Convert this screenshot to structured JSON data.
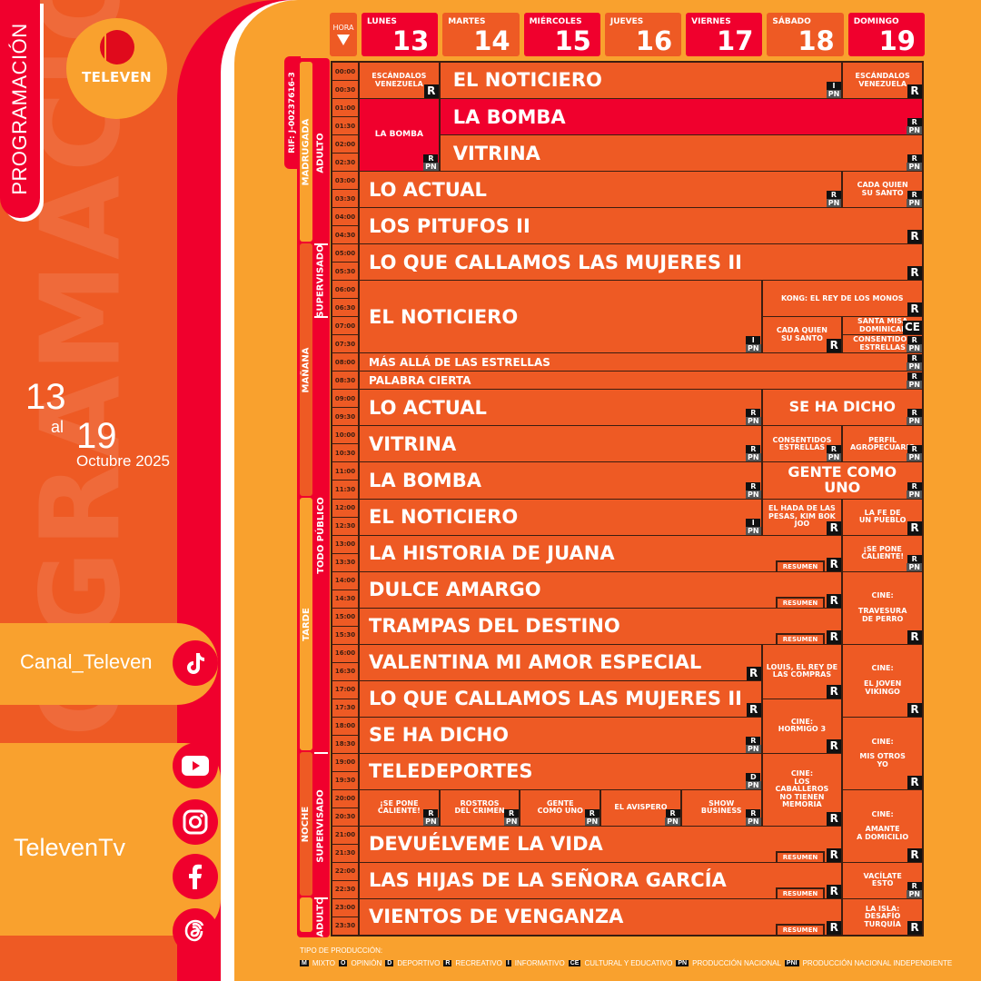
{
  "brand": {
    "title": "PROGRAMACIÓN",
    "logo_text": "TELEVEN",
    "rif": "RIF: J-00237616-3",
    "colors": {
      "orange": "#ee5a24",
      "red": "#f0002d",
      "yellow": "#f9a12e"
    }
  },
  "dates": {
    "from": "13",
    "al": "al",
    "to": "19",
    "month_year": "Octubre 2025"
  },
  "social": {
    "tiktok": "Canal_Televen",
    "others": "TelevenTv",
    "icons": [
      "tiktok-icon",
      "youtube-icon",
      "instagram-icon",
      "facebook-icon",
      "threads-icon"
    ]
  },
  "header": {
    "hora": "HORA",
    "days": [
      {
        "name": "LUNES",
        "num": "13",
        "color": "#f0002d"
      },
      {
        "name": "MARTES",
        "num": "14",
        "color": "#ee5a24"
      },
      {
        "name": "MIÉRCOLES",
        "num": "15",
        "color": "#f0002d"
      },
      {
        "name": "JUEVES",
        "num": "16",
        "color": "#ee5a24"
      },
      {
        "name": "VIERNES",
        "num": "17",
        "color": "#f0002d"
      },
      {
        "name": "SÁBADO",
        "num": "18",
        "color": "#ee5a24"
      },
      {
        "name": "DOMINGO",
        "num": "19",
        "color": "#f0002d"
      }
    ]
  },
  "times": [
    "00:00",
    "00:30",
    "01:00",
    "01:30",
    "02:00",
    "02:30",
    "03:00",
    "03:30",
    "04:00",
    "04:30",
    "05:00",
    "05:30",
    "06:00",
    "06:30",
    "07:00",
    "07:30",
    "08:00",
    "08:30",
    "09:00",
    "09:30",
    "10:00",
    "10:30",
    "11:00",
    "11:30",
    "12:00",
    "12:30",
    "13:00",
    "13:30",
    "14:00",
    "14:30",
    "15:00",
    "15:30",
    "16:00",
    "16:30",
    "17:00",
    "17:30",
    "18:00",
    "18:30",
    "19:00",
    "19:30",
    "20:00",
    "20:30",
    "21:00",
    "21:30",
    "22:00",
    "22:30",
    "23:00",
    "23:30"
  ],
  "dayparts": [
    {
      "label": "MADRUGADA",
      "start": "00:00",
      "end": "05:00",
      "color": "#f9a12e"
    },
    {
      "label": "MAÑANA",
      "start": "05:00",
      "end": "12:00",
      "color": "#ee5a24"
    },
    {
      "label": "TARDE",
      "start": "12:00",
      "end": "19:00",
      "color": "#f9a12e"
    },
    {
      "label": "NOCHE",
      "start": "19:00",
      "end": "23:00",
      "color": "#ee5a24"
    },
    {
      "label": "",
      "start": "23:00",
      "end": "24:00",
      "color": "#f9a12e"
    }
  ],
  "ratings": [
    {
      "label": "ADULTO",
      "start": "00:00",
      "end": "05:00"
    },
    {
      "label": "SUPERVISADO",
      "start": "05:00",
      "end": "07:00"
    },
    {
      "label": "TODO PÚBLICO",
      "start": "07:00",
      "end": "19:00"
    },
    {
      "label": "SUPERVISADO",
      "start": "19:00",
      "end": "23:00"
    },
    {
      "label": "ADULTO",
      "start": "23:00",
      "end": "24:00"
    }
  ],
  "resumen_label": "RESUMEN",
  "programs": [
    {
      "title": "ESCÁNDALOS\nVENEZUELA",
      "days": [
        0,
        0
      ],
      "start": "00:00",
      "end": "01:00",
      "badges": [
        "R"
      ]
    },
    {
      "title": "EL NOTICIERO",
      "days": [
        1,
        5
      ],
      "start": "00:00",
      "end": "01:00",
      "badges": [
        "I",
        "PN"
      ]
    },
    {
      "title": "ESCÁNDALOS\nVENEZUELA",
      "days": [
        6,
        6
      ],
      "start": "00:00",
      "end": "01:00",
      "badges": [
        "R"
      ]
    },
    {
      "title": "LA BOMBA",
      "days": [
        0,
        0
      ],
      "start": "01:00",
      "end": "03:00",
      "badges": [
        "R",
        "PN"
      ],
      "highlight": true
    },
    {
      "title": "LA BOMBA",
      "days": [
        1,
        6
      ],
      "start": "01:00",
      "end": "02:00",
      "badges": [
        "R",
        "PN"
      ],
      "highlight": true
    },
    {
      "title": "VITRINA",
      "days": [
        1,
        6
      ],
      "start": "02:00",
      "end": "03:00",
      "badges": [
        "R",
        "PN"
      ]
    },
    {
      "title": "LO ACTUAL",
      "days": [
        0,
        5
      ],
      "start": "03:00",
      "end": "04:00",
      "badges": [
        "R",
        "PN"
      ]
    },
    {
      "title": "CADA QUIEN\nSU SANTO",
      "days": [
        6,
        6
      ],
      "start": "03:00",
      "end": "04:00",
      "badges": [
        "R",
        "PN"
      ]
    },
    {
      "title": "LOS PITUFOS II",
      "days": [
        0,
        6
      ],
      "start": "04:00",
      "end": "05:00",
      "badges": [
        "R"
      ]
    },
    {
      "title": "LO QUE CALLAMOS LAS MUJERES II",
      "days": [
        0,
        6
      ],
      "start": "05:00",
      "end": "06:00",
      "badges": [
        "R"
      ]
    },
    {
      "title": "EL NOTICIERO",
      "days": [
        0,
        4
      ],
      "start": "06:00",
      "end": "08:00",
      "badges": [
        "I",
        "PN"
      ]
    },
    {
      "title": "KONG: EL REY DE LOS MONOS",
      "days": [
        5,
        6
      ],
      "start": "06:00",
      "end": "07:00",
      "badges": [
        "R"
      ]
    },
    {
      "title": "CADA QUIEN\nSU SANTO",
      "days": [
        5,
        5
      ],
      "start": "07:00",
      "end": "08:00",
      "badges": [
        "R"
      ]
    },
    {
      "title": "SANTA MISA\nDOMINICAL",
      "days": [
        6,
        6
      ],
      "start": "07:00",
      "end": "07:30",
      "badges": [
        "CE"
      ]
    },
    {
      "title": "CONSENTIDOS\nESTRELLAS",
      "days": [
        6,
        6
      ],
      "start": "07:30",
      "end": "08:00",
      "badges": [
        "R",
        "PN"
      ]
    },
    {
      "title": "MÁS ALLÁ DE LAS ESTRELLAS",
      "days": [
        0,
        6
      ],
      "start": "08:00",
      "end": "08:30",
      "badges": [
        "R",
        "PN"
      ]
    },
    {
      "title": "PALABRA CIERTA",
      "days": [
        0,
        6
      ],
      "start": "08:30",
      "end": "09:00",
      "badges": [
        "R",
        "PN"
      ]
    },
    {
      "title": "LO ACTUAL",
      "days": [
        0,
        4
      ],
      "start": "09:00",
      "end": "10:00",
      "badges": [
        "R",
        "PN"
      ]
    },
    {
      "title": "SE HA DICHO",
      "days": [
        5,
        6
      ],
      "start": "09:00",
      "end": "10:00",
      "badges": [
        "R",
        "PN"
      ]
    },
    {
      "title": "VITRINA",
      "days": [
        0,
        4
      ],
      "start": "10:00",
      "end": "11:00",
      "badges": [
        "R",
        "PN"
      ]
    },
    {
      "title": "CONSENTIDOS\nESTRELLAS",
      "days": [
        5,
        5
      ],
      "start": "10:00",
      "end": "11:00",
      "badges": [
        "R",
        "PN"
      ]
    },
    {
      "title": "PERFIL\nAGROPECUARIO",
      "days": [
        6,
        6
      ],
      "start": "10:00",
      "end": "11:00",
      "badges": [
        "R",
        "PN"
      ]
    },
    {
      "title": "LA BOMBA",
      "days": [
        0,
        4
      ],
      "start": "11:00",
      "end": "12:00",
      "badges": [
        "R",
        "PN"
      ]
    },
    {
      "title": "GENTE COMO UNO",
      "days": [
        5,
        6
      ],
      "start": "11:00",
      "end": "12:00",
      "badges": [
        "R",
        "PN"
      ]
    },
    {
      "title": "EL NOTICIERO",
      "days": [
        0,
        4
      ],
      "start": "12:00",
      "end": "13:00",
      "badges": [
        "I",
        "PN"
      ]
    },
    {
      "title": "EL HADA DE LAS\nPESAS, KIM BOK\nJOO",
      "days": [
        5,
        5
      ],
      "start": "12:00",
      "end": "13:00",
      "badges": [
        "R"
      ]
    },
    {
      "title": "LA FE DE\nUN PUEBLO",
      "days": [
        6,
        6
      ],
      "start": "12:00",
      "end": "13:00",
      "badges": [
        "R"
      ]
    },
    {
      "title": "LA HISTORIA DE JUANA",
      "days": [
        0,
        5
      ],
      "start": "13:00",
      "end": "14:00",
      "badges": [
        "R"
      ],
      "resumen": true
    },
    {
      "title": "¡SE PONE\nCALIENTE!",
      "days": [
        6,
        6
      ],
      "start": "13:00",
      "end": "14:00",
      "badges": [
        "R",
        "PN"
      ]
    },
    {
      "title": "DULCE AMARGO",
      "days": [
        0,
        5
      ],
      "start": "14:00",
      "end": "15:00",
      "badges": [
        "R"
      ],
      "resumen": true
    },
    {
      "title": "TRAMPAS DEL DESTINO",
      "days": [
        0,
        5
      ],
      "start": "15:00",
      "end": "16:00",
      "badges": [
        "R"
      ],
      "resumen": true
    },
    {
      "title": "CINE:\n\nTRAVESURA\nDE PERRO",
      "days": [
        6,
        6
      ],
      "start": "14:00",
      "end": "16:00",
      "badges": [
        "R"
      ]
    },
    {
      "title": "VALENTINA MI AMOR ESPECIAL",
      "days": [
        0,
        4
      ],
      "start": "16:00",
      "end": "17:00",
      "badges": [
        "R"
      ]
    },
    {
      "title": "LOUIS, EL REY DE\nLAS COMPRAS",
      "days": [
        5,
        5
      ],
      "start": "16:00",
      "end": "17:30",
      "badges": [
        "R"
      ]
    },
    {
      "title": "CINE:\n\nEL JOVEN\nVIKINGO",
      "days": [
        6,
        6
      ],
      "start": "16:00",
      "end": "18:00",
      "badges": [
        "R"
      ]
    },
    {
      "title": "LO QUE CALLAMOS LAS MUJERES II",
      "days": [
        0,
        4
      ],
      "start": "17:00",
      "end": "18:00",
      "badges": [
        "R"
      ]
    },
    {
      "title": "CINE:\nHORMIGO 3",
      "days": [
        5,
        5
      ],
      "start": "17:30",
      "end": "19:00",
      "badges": [
        "R"
      ]
    },
    {
      "title": "SE HA DICHO",
      "days": [
        0,
        4
      ],
      "start": "18:00",
      "end": "19:00",
      "badges": [
        "R",
        "PN"
      ]
    },
    {
      "title": "CINE:\n\nMIS OTROS\nYO",
      "days": [
        6,
        6
      ],
      "start": "18:00",
      "end": "20:00",
      "badges": [
        "R"
      ]
    },
    {
      "title": "TELEDEPORTES",
      "days": [
        0,
        4
      ],
      "start": "19:00",
      "end": "20:00",
      "badges": [
        "D",
        "PN"
      ]
    },
    {
      "title": "CINE:\nLOS CABALLEROS\nNO TIENEN\nMEMORIA",
      "days": [
        5,
        5
      ],
      "start": "19:00",
      "end": "21:00",
      "badges": [
        "R"
      ]
    },
    {
      "title": "¡SE PONE\nCALIENTE!",
      "days": [
        0,
        0
      ],
      "start": "20:00",
      "end": "21:00",
      "badges": [
        "R",
        "PN"
      ]
    },
    {
      "title": "ROSTROS\nDEL CRIMEN",
      "days": [
        1,
        1
      ],
      "start": "20:00",
      "end": "21:00",
      "badges": [
        "R",
        "PN"
      ]
    },
    {
      "title": "GENTE\nCOMO UNO",
      "days": [
        2,
        2
      ],
      "start": "20:00",
      "end": "21:00",
      "badges": [
        "R",
        "PN"
      ]
    },
    {
      "title": "EL AVISPERO",
      "days": [
        3,
        3
      ],
      "start": "20:00",
      "end": "21:00",
      "badges": [
        "R",
        "PN"
      ]
    },
    {
      "title": "SHOW\nBUSINESS",
      "days": [
        4,
        4
      ],
      "start": "20:00",
      "end": "21:00",
      "badges": [
        "R",
        "PN"
      ]
    },
    {
      "title": "CINE:\n\nAMANTE\nA DOMICILIO",
      "days": [
        6,
        6
      ],
      "start": "20:00",
      "end": "22:00",
      "badges": [
        "R"
      ]
    },
    {
      "title": "DEVUÉLVEME LA VIDA",
      "days": [
        0,
        5
      ],
      "start": "21:00",
      "end": "22:00",
      "badges": [
        "R"
      ],
      "resumen": true
    },
    {
      "title": "LAS HIJAS DE LA SEÑORA GARCÍA",
      "days": [
        0,
        5
      ],
      "start": "22:00",
      "end": "23:00",
      "badges": [
        "R"
      ],
      "resumen": true
    },
    {
      "title": "VACÍLATE\nESTO",
      "days": [
        6,
        6
      ],
      "start": "22:00",
      "end": "23:00",
      "badges": [
        "R",
        "PN"
      ]
    },
    {
      "title": "VIENTOS DE VENGANZA",
      "days": [
        0,
        5
      ],
      "start": "23:00",
      "end": "24:00",
      "badges": [
        "R"
      ],
      "resumen": true
    },
    {
      "title": "LA ISLA:\nDESAFÍO TURQUÍA",
      "days": [
        6,
        6
      ],
      "start": "23:00",
      "end": "24:00",
      "badges": [
        "R"
      ]
    }
  ],
  "legend": {
    "title": "TIPO DE PRODUCCIÓN:",
    "items": [
      {
        "code": "M",
        "label": "MIXTO"
      },
      {
        "code": "O",
        "label": "OPINIÓN"
      },
      {
        "code": "D",
        "label": "DEPORTIVO"
      },
      {
        "code": "R",
        "label": "RECREATIVO"
      },
      {
        "code": "I",
        "label": "INFORMATIVO"
      },
      {
        "code": "CE",
        "label": "CULTURAL Y EDUCATIVO"
      },
      {
        "code": "PN",
        "label": "PRODUCCIÓN NACIONAL"
      },
      {
        "code": "PNI",
        "label": "PRODUCCIÓN NACIONAL INDEPENDIENTE"
      }
    ]
  }
}
